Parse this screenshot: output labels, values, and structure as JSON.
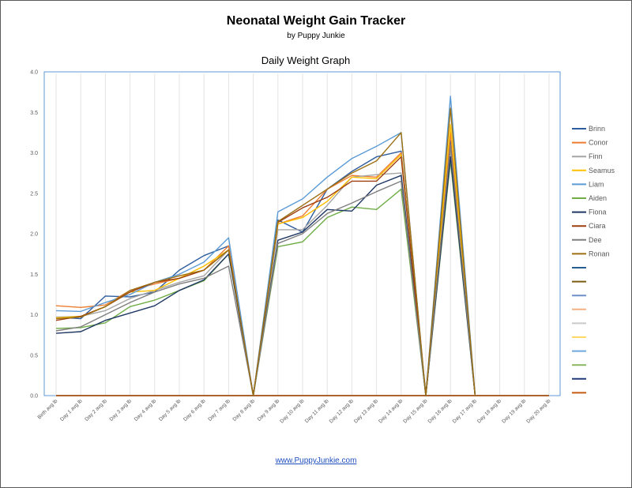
{
  "header": {
    "title": "Neonatal Weight Gain Tracker",
    "subtitle": "by Puppy Junkie"
  },
  "footer": {
    "link_text": "www.PuppyJunkie.com"
  },
  "chart_data": {
    "type": "line",
    "title": "Daily Weight Graph",
    "xlabel": "",
    "ylabel": "",
    "ylim": [
      0,
      4.0
    ],
    "yticks": [
      "0.0",
      "0.5",
      "1.0",
      "1.5",
      "2.0",
      "2.5",
      "3.0",
      "3.5",
      "4.0"
    ],
    "legend_position": "right",
    "grid": "vertical",
    "categories": [
      "Birth avg lb",
      "Day 1 avg lb",
      "Day 2 avg lb",
      "Day 3 avg lb",
      "Day 4 avg lb",
      "Day 5 avg lb",
      "Day 6 avg lb",
      "Day 7 avg lb",
      "Day 8 avg lb",
      "Day 9 avg lb",
      "Day 10 avg lb",
      "Day 11 avg lb",
      "Day 12 avg lb",
      "Day 13 avg lb",
      "Day 14 avg lb",
      "Day 15 avg lb",
      "Day 16 avg lb",
      "Day 17 avg lb",
      "Day 18 avg lb",
      "Day 19 avg lb",
      "Day 20 avg lb"
    ],
    "series": [
      {
        "name": "Brinn",
        "color": "#2e5d9f",
        "values": [
          0.97,
          0.95,
          1.23,
          1.22,
          1.28,
          1.55,
          1.73,
          1.85,
          0,
          2.17,
          2.02,
          2.55,
          2.77,
          2.95,
          3.02,
          0,
          3.15,
          0,
          null,
          null,
          null
        ]
      },
      {
        "name": "Conor",
        "color": "#ed7d31",
        "values": [
          1.11,
          1.09,
          1.12,
          1.3,
          1.38,
          1.45,
          1.55,
          1.85,
          0,
          2.12,
          2.22,
          2.55,
          2.72,
          2.7,
          3.0,
          0,
          3.25,
          0,
          null,
          null,
          null
        ]
      },
      {
        "name": "Finn",
        "color": "#a5a5a5",
        "values": [
          0.97,
          0.98,
          1.05,
          1.2,
          1.3,
          1.4,
          1.48,
          1.8,
          0,
          2.05,
          2.05,
          2.35,
          2.7,
          2.73,
          2.75,
          0,
          3.05,
          0,
          null,
          null,
          null
        ]
      },
      {
        "name": "Seamus",
        "color": "#ffc000",
        "values": [
          0.96,
          0.98,
          1.1,
          1.28,
          1.3,
          1.45,
          1.6,
          1.8,
          0,
          2.12,
          2.2,
          2.4,
          2.7,
          2.68,
          2.98,
          0,
          3.35,
          0,
          null,
          null,
          null
        ]
      },
      {
        "name": "Liam",
        "color": "#5b9bd5",
        "values": [
          1.05,
          1.04,
          1.15,
          1.25,
          1.4,
          1.5,
          1.65,
          1.95,
          0,
          2.27,
          2.43,
          2.7,
          2.93,
          3.08,
          3.25,
          0,
          3.7,
          0,
          null,
          null,
          null
        ]
      },
      {
        "name": "Aiden",
        "color": "#70ad47",
        "values": [
          0.83,
          0.84,
          0.9,
          1.1,
          1.18,
          1.3,
          1.42,
          1.75,
          0,
          1.84,
          1.9,
          2.2,
          2.33,
          2.3,
          2.55,
          0,
          2.9,
          0,
          null,
          null,
          null
        ]
      },
      {
        "name": "Fiona",
        "color": "#1f3864",
        "values": [
          0.77,
          0.79,
          0.93,
          1.02,
          1.11,
          1.3,
          1.43,
          1.75,
          0,
          1.92,
          2.02,
          2.3,
          2.28,
          2.6,
          2.72,
          0,
          2.95,
          0,
          null,
          null,
          null
        ]
      },
      {
        "name": "Ciara",
        "color": "#9e3f0f",
        "values": [
          0.93,
          0.98,
          1.1,
          1.28,
          1.4,
          1.45,
          1.55,
          1.8,
          0,
          2.14,
          2.32,
          2.45,
          2.65,
          2.65,
          2.95,
          0,
          3.1,
          0,
          null,
          null,
          null
        ]
      },
      {
        "name": "Dee",
        "color": "#7f7f7f",
        "values": [
          0.8,
          0.85,
          1.0,
          1.15,
          1.28,
          1.38,
          1.45,
          1.6,
          0,
          1.88,
          2.0,
          2.25,
          2.38,
          2.52,
          2.65,
          0,
          3.1,
          0,
          null,
          null,
          null
        ]
      },
      {
        "name": "Ronan",
        "color": "#9c6f12",
        "values": [
          0.95,
          0.97,
          1.1,
          1.3,
          1.4,
          1.48,
          1.55,
          1.8,
          0,
          2.15,
          2.35,
          2.55,
          2.75,
          2.9,
          3.25,
          0,
          3.55,
          0,
          null,
          null,
          null
        ]
      },
      {
        "name": "",
        "color": "#255e91",
        "values": [
          0,
          0,
          0,
          0,
          0,
          0,
          0,
          0,
          0,
          0,
          0,
          0,
          0,
          0,
          0,
          0,
          0,
          0,
          0,
          0,
          0
        ]
      },
      {
        "name": "",
        "color": "#7b5c12",
        "values": [
          0,
          0,
          0,
          0,
          0,
          0,
          0,
          0,
          0,
          0,
          0,
          0,
          0,
          0,
          0,
          0,
          0,
          0,
          0,
          0,
          0
        ]
      },
      {
        "name": "",
        "color": "#6f8fc9",
        "values": [
          0,
          0,
          0,
          0,
          0,
          0,
          0,
          0,
          0,
          0,
          0,
          0,
          0,
          0,
          0,
          0,
          0,
          0,
          0,
          0,
          0
        ]
      },
      {
        "name": "",
        "color": "#f4b183",
        "values": [
          0,
          0,
          0,
          0,
          0,
          0,
          0,
          0,
          0,
          0,
          0,
          0,
          0,
          0,
          0,
          0,
          0,
          0,
          0,
          0,
          0
        ]
      },
      {
        "name": "",
        "color": "#c9c9c9",
        "values": [
          0,
          0,
          0,
          0,
          0,
          0,
          0,
          0,
          0,
          0,
          0,
          0,
          0,
          0,
          0,
          0,
          0,
          0,
          0,
          0,
          0
        ]
      },
      {
        "name": "",
        "color": "#ffd966",
        "values": [
          0,
          0,
          0,
          0,
          0,
          0,
          0,
          0,
          0,
          0,
          0,
          0,
          0,
          0,
          0,
          0,
          0,
          0,
          0,
          0,
          0
        ]
      },
      {
        "name": "",
        "color": "#6fa8dc",
        "values": [
          0,
          0,
          0,
          0,
          0,
          0,
          0,
          0,
          0,
          0,
          0,
          0,
          0,
          0,
          0,
          0,
          0,
          0,
          0,
          0,
          0
        ]
      },
      {
        "name": "",
        "color": "#8ab661",
        "values": [
          0,
          0,
          0,
          0,
          0,
          0,
          0,
          0,
          0,
          0,
          0,
          0,
          0,
          0,
          0,
          0,
          0,
          0,
          0,
          0,
          0
        ]
      },
      {
        "name": "",
        "color": "#203a7a",
        "values": [
          0,
          0,
          0,
          0,
          0,
          0,
          0,
          0,
          0,
          0,
          0,
          0,
          0,
          0,
          0,
          0,
          0,
          0,
          0,
          0,
          0
        ]
      },
      {
        "name": "",
        "color": "#c55a11",
        "values": [
          0,
          0,
          0,
          0,
          0,
          0,
          0,
          0,
          0,
          0,
          0,
          0,
          0,
          0,
          0,
          0,
          0,
          0,
          0,
          0,
          0
        ]
      }
    ]
  }
}
